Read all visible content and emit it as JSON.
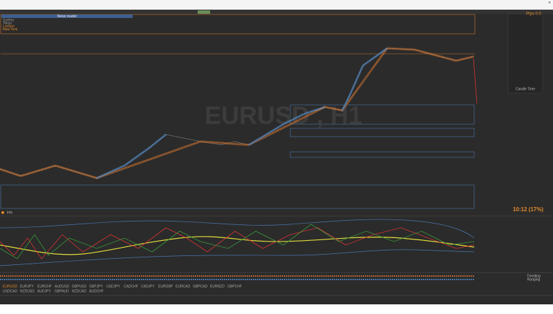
{
  "window": {
    "watermark": "EURUSD , H1",
    "news_reader": "News reader",
    "pips": "Pips 0.0",
    "candle_timer": "10:12 (17%)",
    "candle_time_label": "Candle Time",
    "indicator_label": "Info",
    "sessions": [
      "Sydney",
      "Tokyo",
      "London",
      "New York"
    ],
    "strip_labels": [
      "Trending",
      "Ranging"
    ]
  },
  "symbols": [
    "EURUSD",
    "EURJPY",
    "EURCHF",
    "AUDUSD",
    "GBPUSD",
    "GBPJPY",
    "USDJPY",
    "CADCHF",
    "CADJPY",
    "EURGBP",
    "EURCAD",
    "GBPCAD",
    "EURNZD",
    "GBPCHF",
    "USDCAD",
    "NZDUSD",
    "AUDJPY",
    "GBPAUD",
    "NZDCAD",
    "AUDCHF"
  ]
}
